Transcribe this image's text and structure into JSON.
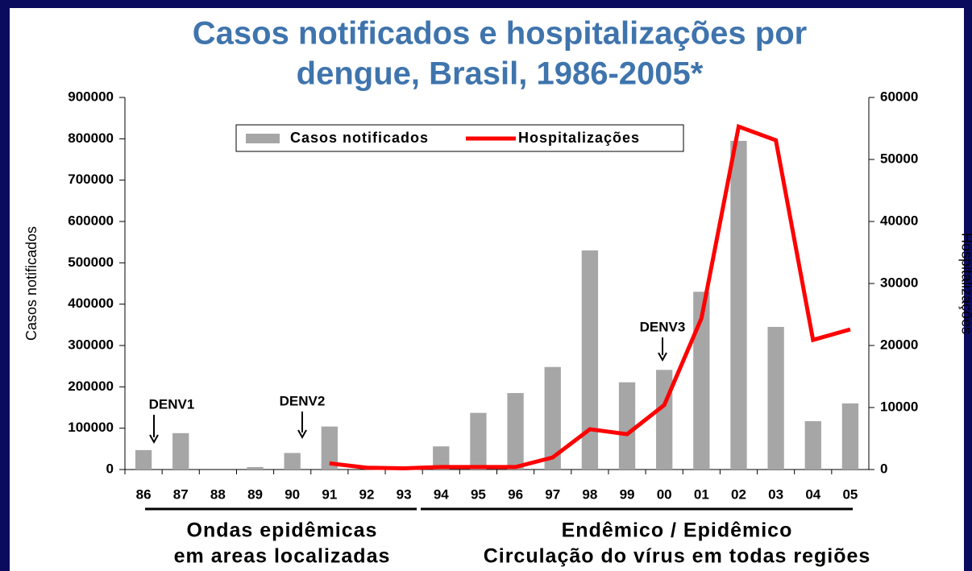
{
  "chart_data": {
    "type": "bar_line",
    "title": [
      "Casos notificados e hospitalizações por",
      "dengue, Brasil, 1986-2005*"
    ],
    "y_label": "Casos notificados",
    "y2_label": "Hospitalizações",
    "categories": [
      "86",
      "87",
      "88",
      "89",
      "90",
      "91",
      "92",
      "93",
      "94",
      "95",
      "96",
      "97",
      "98",
      "99",
      "00",
      "01",
      "02",
      "03",
      "04",
      "05"
    ],
    "series": [
      {
        "name": "Casos notificados",
        "type": "bar",
        "color": "#a6a6a6",
        "values": [
          47000,
          88000,
          0,
          6000,
          40000,
          104000,
          0,
          0,
          56000,
          137000,
          185000,
          248000,
          530000,
          211000,
          241000,
          430000,
          795000,
          345000,
          117000,
          160000
        ]
      },
      {
        "name": "Hospitalizações",
        "type": "line",
        "axis": "y2",
        "color": "#ff0000",
        "values": [
          null,
          null,
          null,
          null,
          null,
          1000,
          300,
          200,
          400,
          400,
          400,
          1950,
          6500,
          5700,
          10400,
          24400,
          55300,
          53100,
          20900,
          22600
        ]
      }
    ],
    "ylim": [
      0,
      900000
    ],
    "yticks": [
      0,
      100000,
      200000,
      300000,
      400000,
      500000,
      600000,
      700000,
      800000,
      900000
    ],
    "y2lim": [
      0,
      60000
    ],
    "y2ticks": [
      0,
      10000,
      20000,
      30000,
      40000,
      50000,
      60000
    ],
    "annotations": [
      "DENV1",
      "DENV2",
      "DENV3"
    ],
    "period_labels": [
      [
        "Ondas epidêmicas",
        "em areas localizadas"
      ],
      [
        "Endêmico / Epidêmico",
        "Circulação do vírus em todas regiões"
      ]
    ]
  }
}
